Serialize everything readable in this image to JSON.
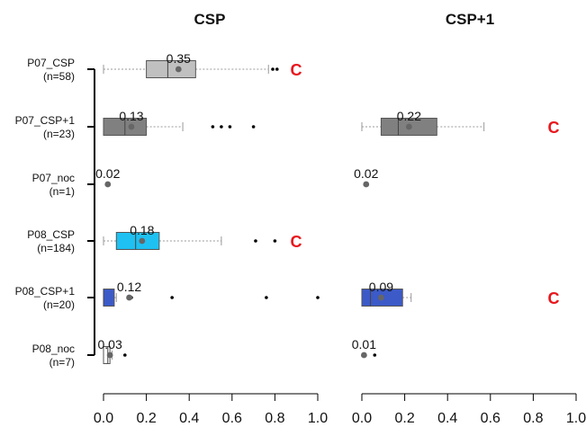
{
  "chart_data": {
    "type": "boxplot",
    "orientation": "horizontal",
    "panels": [
      "CSP",
      "CSP+1"
    ],
    "groups": [
      {
        "name": "P07_CSP",
        "n": "(n=58)"
      },
      {
        "name": "P07_CSP+1",
        "n": "(n=23)"
      },
      {
        "name": "P07_noc",
        "n": "(n=1)"
      },
      {
        "name": "P08_CSP",
        "n": "(n=184)"
      },
      {
        "name": "P08_CSP+1",
        "n": "(n=20)"
      },
      {
        "name": "P08_noc",
        "n": "(n=7)"
      }
    ],
    "xlim": [
      0,
      1
    ],
    "xticks": [
      "0.0",
      "0.2",
      "0.4",
      "0.6",
      "0.8",
      "1.0"
    ],
    "boxes": [
      {
        "panel": 0,
        "group": 0,
        "min": 0.0,
        "q1": 0.2,
        "median": 0.3,
        "q3": 0.43,
        "max": 0.77,
        "mean": 0.35,
        "mean_label": "0.35",
        "outliers": [
          0.79,
          0.81
        ],
        "color": "#c0c0c0",
        "sig": "C"
      },
      {
        "panel": 0,
        "group": 1,
        "min": 0.0,
        "q1": 0.0,
        "median": 0.1,
        "q3": 0.2,
        "max": 0.37,
        "mean": 0.13,
        "mean_label": "0.13",
        "outliers": [
          0.51,
          0.55,
          0.59,
          0.7
        ],
        "color": "#808080"
      },
      {
        "panel": 0,
        "group": 2,
        "mean": 0.02,
        "mean_label": "0.02",
        "single": true
      },
      {
        "panel": 0,
        "group": 3,
        "min": 0.0,
        "q1": 0.06,
        "median": 0.15,
        "q3": 0.26,
        "max": 0.55,
        "mean": 0.18,
        "mean_label": "0.18",
        "outliers": [
          0.71,
          0.8
        ],
        "color": "#1ec1f2",
        "sig": "C"
      },
      {
        "panel": 0,
        "group": 4,
        "min": 0.0,
        "q1": 0.0,
        "median": 0.0,
        "q3": 0.05,
        "max": 0.06,
        "mean": 0.12,
        "mean_label": "0.12",
        "outliers": [
          0.13,
          0.32,
          0.76,
          1.0
        ],
        "color": "#3c5ac8"
      },
      {
        "panel": 0,
        "group": 5,
        "min": 0.0,
        "q1": 0.0,
        "median": 0.02,
        "q3": 0.03,
        "max": 0.04,
        "mean": 0.03,
        "mean_label": "0.03",
        "outliers": [
          0.1
        ],
        "color": "#ffffff"
      },
      {
        "panel": 1,
        "group": 1,
        "min": 0.0,
        "q1": 0.09,
        "median": 0.17,
        "q3": 0.35,
        "max": 0.57,
        "mean": 0.22,
        "mean_label": "0.22",
        "outliers": [],
        "color": "#808080",
        "sig": "C"
      },
      {
        "panel": 1,
        "group": 2,
        "mean": 0.02,
        "mean_label": "0.02",
        "single": true
      },
      {
        "panel": 1,
        "group": 4,
        "min": 0.0,
        "q1": 0.0,
        "median": 0.04,
        "q3": 0.19,
        "max": 0.23,
        "mean": 0.09,
        "mean_label": "0.09",
        "outliers": [],
        "color": "#3c5ac8",
        "sig": "C"
      },
      {
        "panel": 1,
        "group": 5,
        "mean": 0.01,
        "mean_label": "0.01",
        "single": true,
        "outliers": [
          0.06
        ]
      }
    ],
    "colors": {
      "significance": "#e8161c",
      "mean_point": "#666666",
      "whisker": "#9a9a9a"
    }
  }
}
